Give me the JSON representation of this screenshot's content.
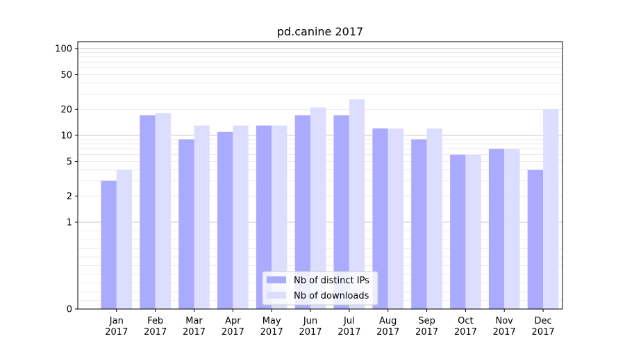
{
  "chart_data": {
    "type": "bar",
    "title": "pd.canine 2017",
    "xlabel": "",
    "ylabel": "",
    "yscale": "symlog",
    "ylim": [
      0,
      120
    ],
    "yticks": [
      0,
      1,
      2,
      5,
      10,
      20,
      50,
      100
    ],
    "ytick_labels": [
      "0",
      "1",
      "2",
      "5",
      "10",
      "20",
      "50",
      "100"
    ],
    "grid": true,
    "legend_position": "bottom-center",
    "categories": [
      {
        "month": "Jan",
        "year": "2017"
      },
      {
        "month": "Feb",
        "year": "2017"
      },
      {
        "month": "Mar",
        "year": "2017"
      },
      {
        "month": "Apr",
        "year": "2017"
      },
      {
        "month": "May",
        "year": "2017"
      },
      {
        "month": "Jun",
        "year": "2017"
      },
      {
        "month": "Jul",
        "year": "2017"
      },
      {
        "month": "Aug",
        "year": "2017"
      },
      {
        "month": "Sep",
        "year": "2017"
      },
      {
        "month": "Oct",
        "year": "2017"
      },
      {
        "month": "Nov",
        "year": "2017"
      },
      {
        "month": "Dec",
        "year": "2017"
      }
    ],
    "series": [
      {
        "name": "Nb of distinct IPs",
        "color": "#aaaaff",
        "values": [
          3,
          17,
          9,
          11,
          13,
          17,
          17,
          12,
          9,
          6,
          7,
          4
        ]
      },
      {
        "name": "Nb of downloads",
        "color": "#ddddff",
        "values": [
          4,
          18,
          13,
          13,
          13,
          21,
          26,
          12,
          12,
          6,
          7,
          20
        ]
      }
    ]
  }
}
